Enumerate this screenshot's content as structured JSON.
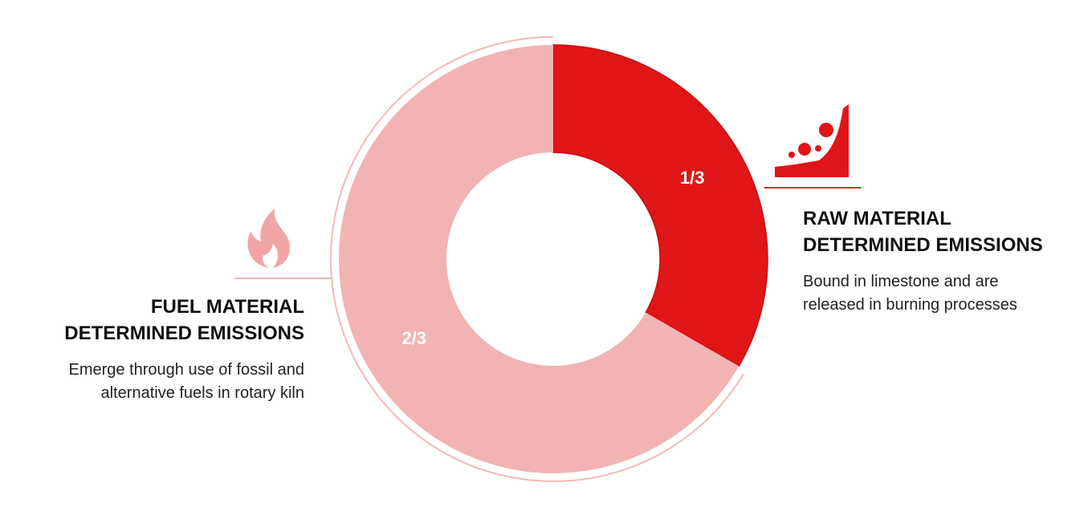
{
  "chart_data": {
    "type": "donut",
    "values": [
      0.3333,
      0.6667
    ],
    "value_labels": [
      "1/3",
      "2/3"
    ],
    "colors": [
      "#e01518",
      "#f2b3b3"
    ],
    "annotations": [
      {
        "title_lines": [
          "RAW MATERIAL",
          "DETERMINED EMISSIONS"
        ],
        "text_lines": [
          "Bound in limestone and are",
          "released in burning processes"
        ]
      },
      {
        "title_lines": [
          "FUEL MATERIAL",
          "DETERMINED EMISSIONS"
        ],
        "text_lines": [
          "Emerge through use of fossil and",
          "alternative fuels in rotary kiln"
        ]
      }
    ]
  }
}
